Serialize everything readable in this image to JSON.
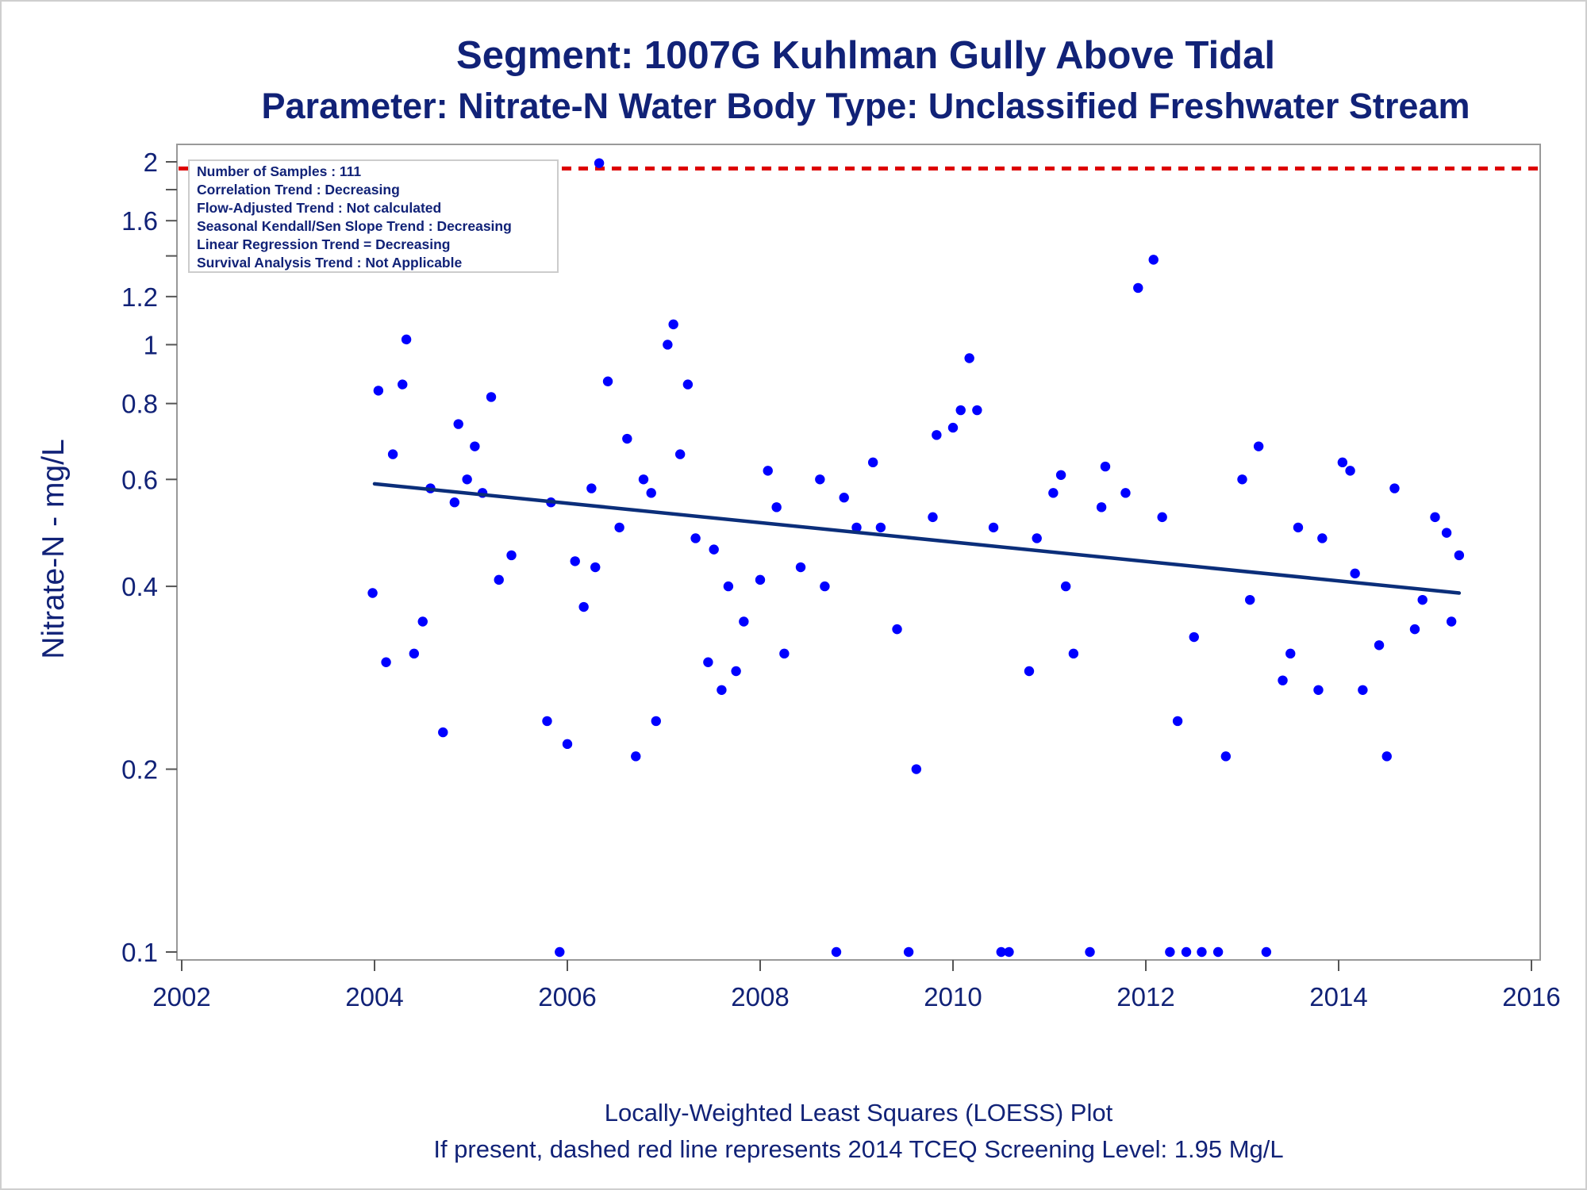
{
  "chart_data": {
    "type": "scatter",
    "title": "Segment: 1007G  Kuhlman Gully Above Tidal",
    "subtitle": "Parameter: Nitrate-N   Water Body Type: Unclassified Freshwater Stream",
    "ylabel": "Nitrate-N - mg/L",
    "xlabel": "",
    "yscale": "log",
    "xlim": [
      2002,
      2016
    ],
    "ylim": [
      0.1,
      2
    ],
    "x_ticks": [
      "2002",
      "2004",
      "2006",
      "2008",
      "2010",
      "2012",
      "2014",
      "2016"
    ],
    "y_ticks": [
      {
        "value": 0.1,
        "label": "0.1"
      },
      {
        "value": 0.2,
        "label": "0.2"
      },
      {
        "value": 0.4,
        "label": "0.4"
      },
      {
        "value": 0.6,
        "label": "0.6"
      },
      {
        "value": 0.8,
        "label": "0.8"
      },
      {
        "value": 1.0,
        "label": "1"
      },
      {
        "value": 1.2,
        "label": "1.2"
      },
      {
        "value": 1.6,
        "label": "1.6"
      },
      {
        "value": 2.0,
        "label": "2"
      }
    ],
    "y_minor_ticks": [
      1.4,
      1.8
    ],
    "grid": false,
    "legend": "none",
    "info_box": [
      "Number of Samples : 111",
      "Correlation Trend : Decreasing",
      "Flow-Adjusted Trend : Not calculated",
      "Seasonal Kendall/Sen Slope Trend : Decreasing",
      "Linear Regression Trend = Decreasing",
      "Survival Analysis Trend : Not Applicable"
    ],
    "screening_level": 1.95,
    "footnotes": [
      "Locally-Weighted Least Squares (LOESS) Plot",
      "If present, dashed red line represents 2014 TCEQ Screening Level: 1.95 Mg/L"
    ],
    "colors": {
      "points": "#0000ff",
      "trend": "#0b2e7a",
      "screening": "#dd0000",
      "text": "#112277",
      "axis": "#999999"
    },
    "trend_line": {
      "x": [
        2004.0,
        2015.25
      ],
      "y": [
        0.59,
        0.39
      ]
    },
    "series": [
      {
        "x": [
          2003.98,
          2004.04,
          2004.12,
          2004.19,
          2004.29,
          2004.33,
          2004.41,
          2004.5,
          2004.58,
          2004.71,
          2004.83,
          2004.87,
          2004.96,
          2005.04,
          2005.12,
          2005.21,
          2005.29,
          2005.42,
          2005.79,
          2005.83,
          2005.92,
          2006.0,
          2006.08,
          2006.17,
          2006.25,
          2006.29,
          2006.33,
          2006.42,
          2006.54,
          2006.62,
          2006.71,
          2006.79,
          2006.87,
          2006.92,
          2007.04,
          2007.1,
          2007.17,
          2007.25,
          2007.33,
          2007.46,
          2007.52,
          2007.6,
          2007.67,
          2007.75,
          2007.83,
          2008.0,
          2008.08,
          2008.17,
          2008.25,
          2008.42,
          2008.62,
          2008.67,
          2008.79,
          2008.87,
          2009.0,
          2009.25,
          2009.17,
          2009.42,
          2009.54,
          2009.62,
          2009.79,
          2009.83,
          2010.0,
          2010.08,
          2010.17,
          2010.25,
          2010.42,
          2010.5,
          2010.58,
          2010.79,
          2010.87,
          2011.04,
          2011.12,
          2011.17,
          2011.25,
          2011.42,
          2011.54,
          2011.58,
          2011.79,
          2011.92,
          2012.08,
          2012.17,
          2012.25,
          2012.33,
          2012.42,
          2012.5,
          2012.58,
          2012.75,
          2012.83,
          2013.0,
          2013.08,
          2013.17,
          2013.25,
          2013.42,
          2013.5,
          2013.58,
          2013.79,
          2013.83,
          2014.04,
          2014.12,
          2014.17,
          2014.25,
          2014.42,
          2014.5,
          2014.58,
          2014.79,
          2014.87,
          2015.0,
          2015.12,
          2015.17,
          2015.25
        ],
        "y": [
          0.39,
          0.84,
          0.3,
          0.66,
          0.86,
          1.02,
          0.31,
          0.35,
          0.58,
          0.23,
          0.55,
          0.74,
          0.6,
          0.68,
          0.57,
          0.82,
          0.41,
          0.45,
          0.24,
          0.55,
          0.1,
          0.22,
          0.44,
          0.37,
          0.58,
          0.43,
          1.99,
          0.87,
          0.5,
          0.7,
          0.21,
          0.6,
          0.57,
          0.24,
          1.0,
          1.08,
          0.66,
          0.86,
          0.48,
          0.3,
          0.46,
          0.27,
          0.4,
          0.29,
          0.35,
          0.41,
          0.62,
          0.54,
          0.31,
          0.43,
          0.6,
          0.4,
          0.1,
          0.56,
          0.5,
          0.5,
          0.64,
          0.34,
          0.1,
          0.2,
          0.52,
          0.71,
          0.73,
          0.78,
          0.95,
          0.78,
          0.5,
          0.1,
          0.1,
          0.29,
          0.48,
          0.57,
          0.61,
          0.4,
          0.31,
          0.1,
          0.54,
          0.63,
          0.57,
          1.24,
          1.38,
          0.52,
          0.1,
          0.24,
          0.1,
          0.33,
          0.1,
          0.1,
          0.21,
          0.6,
          0.38,
          0.68,
          0.1,
          0.28,
          0.31,
          0.5,
          0.27,
          0.48,
          0.64,
          0.62,
          0.42,
          0.27,
          0.32,
          0.21,
          0.58,
          0.34,
          0.38,
          0.52,
          0.49,
          0.35,
          0.45
        ]
      }
    ]
  }
}
